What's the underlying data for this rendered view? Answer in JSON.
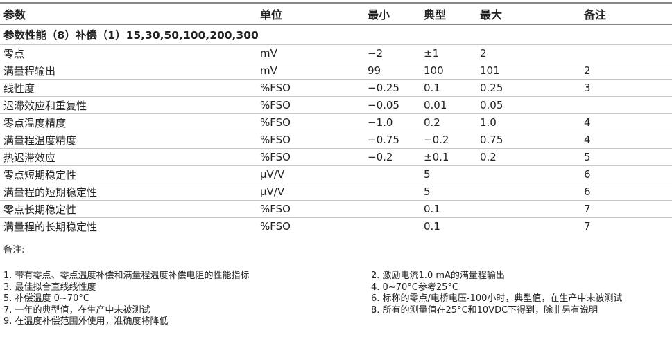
{
  "table": {
    "headers": [
      "参数",
      "单位",
      "最小",
      "典型",
      "最大",
      "备注"
    ],
    "section": "参数性能（8）补偿（1）15,30,50,100,200,300",
    "rows": [
      [
        "零点",
        "mV",
        "−2",
        "±1",
        "2",
        ""
      ],
      [
        "满量程输出",
        "mV",
        "99",
        "100",
        "101",
        "2"
      ],
      [
        "线性度",
        "%FSO",
        "−0.25",
        "0.1",
        "0.25",
        "3"
      ],
      [
        "迟滞效应和重复性",
        "%FSO",
        "−0.05",
        "0.01",
        "0.05",
        ""
      ],
      [
        "零点温度精度",
        "%FSO",
        "−1.0",
        "0.2",
        "1.0",
        "4"
      ],
      [
        "满量程温度精度",
        "%FSO",
        "−0.75",
        "−0.2",
        "0.75",
        "4"
      ],
      [
        "热迟滞效应",
        "%FSO",
        "−0.2",
        "±0.1",
        "0.2",
        "5"
      ],
      [
        "零点短期稳定性",
        "μV/V",
        "",
        "5",
        "",
        "6"
      ],
      [
        "满量程的短期稳定性",
        "μV/V",
        "",
        "5",
        "",
        "6"
      ],
      [
        "零点长期稳定性",
        "%FSO",
        "",
        "0.1",
        "",
        "7"
      ],
      [
        "满量程的长期稳定性",
        "%FSO",
        "",
        "0.1",
        "",
        "7"
      ]
    ]
  },
  "notes": {
    "title": "备注:",
    "items": [
      "1. 带有零点、零点温度补偿和满量程温度补偿电阻的性能指标",
      "2. 激励电流1.0 mA的满量程输出",
      "3. 最佳拟合直线线性度",
      "4. 0~70°C参考25°C",
      "5. 补偿温度 0~70°C",
      "6. 标称的零点/电桥电压-100小时，典型值，在生产中未被测试",
      "7. 一年的典型值，在生产中未被测试",
      "8. 所有的测量值在25°C和10VDC下得到，除非另有说明",
      "9. 在温度补偿范围外使用，准确度将降低"
    ]
  }
}
